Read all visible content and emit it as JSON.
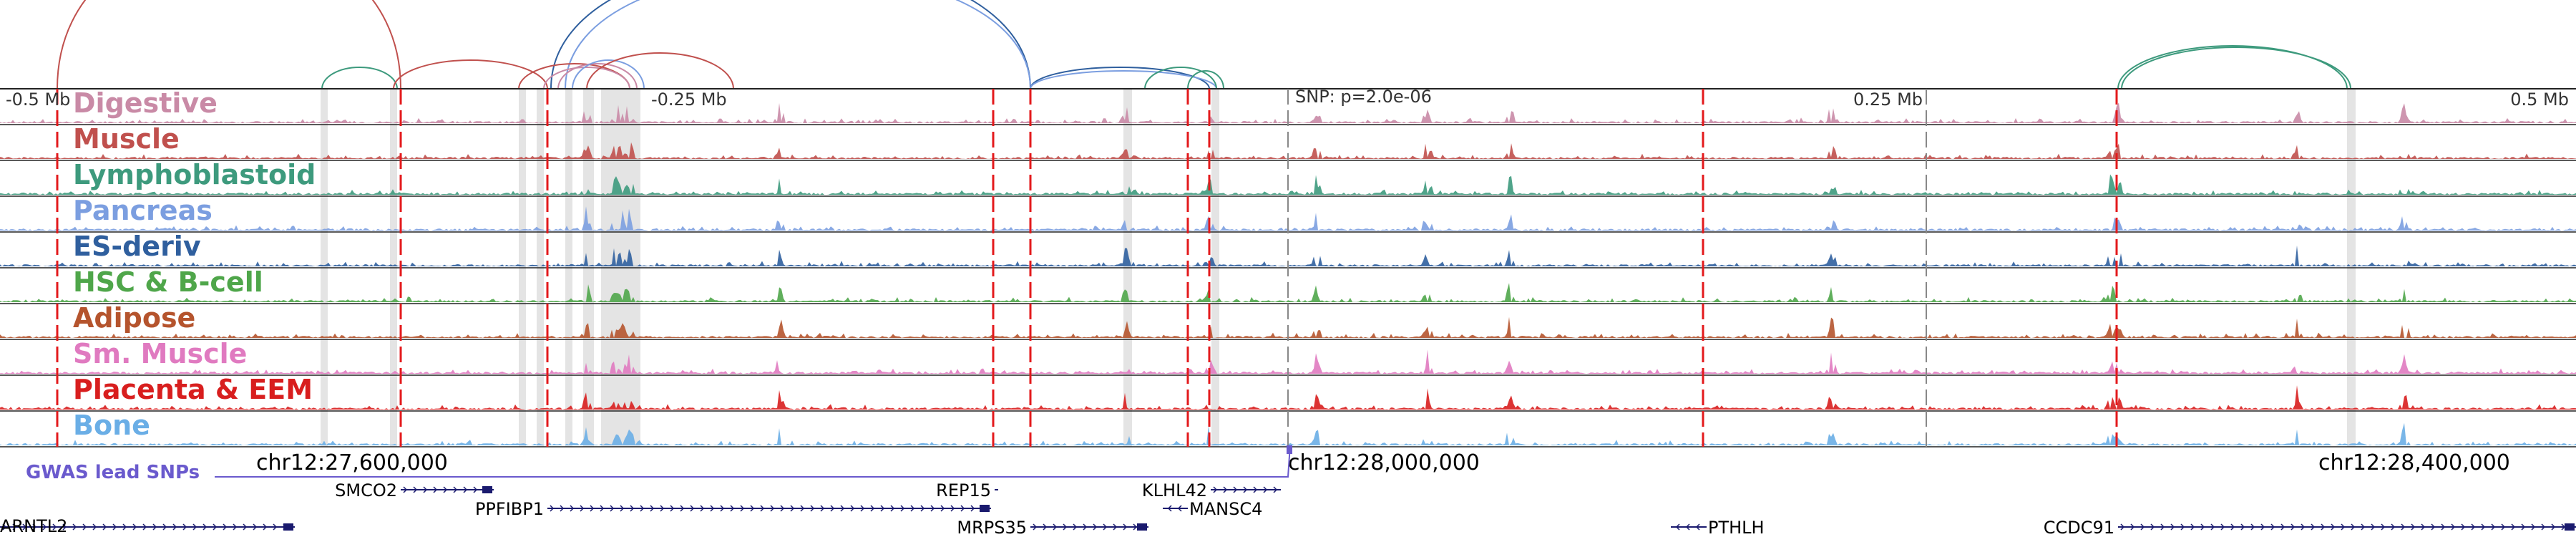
{
  "genome_browser": {
    "offset_labels": [
      "-0.5 Mb",
      "-0.25 Mb",
      "0.25 Mb",
      "0.5 Mb"
    ],
    "snp_label": "SNP: p=2.0e-06",
    "tracks": [
      {
        "label": "Digestive",
        "color": "#c98aa6"
      },
      {
        "label": "Muscle",
        "color": "#c0504d"
      },
      {
        "label": "Lymphoblastoid",
        "color": "#3d9a7d"
      },
      {
        "label": "Pancreas",
        "color": "#7b9ee0"
      },
      {
        "label": "ES-deriv",
        "color": "#2f5f9e"
      },
      {
        "label": "HSC & B-cell",
        "color": "#4fa64a"
      },
      {
        "label": "Adipose",
        "color": "#b5542d"
      },
      {
        "label": "Sm. Muscle",
        "color": "#e07ac0"
      },
      {
        "label": "Placenta & EEM",
        "color": "#d81e1e"
      },
      {
        "label": "Bone",
        "color": "#6aaee6"
      }
    ],
    "coordinates": [
      "chr12:27,600,000",
      "chr12:28,000,000",
      "chr12:28,400,000"
    ],
    "gwas_label": "GWAS lead SNPs",
    "gwas_color": "#6a5acd",
    "arc_colors": [
      "#c0504d",
      "#3d9a7d",
      "#2f5f9e",
      "#7b9ee0",
      "#c98aa6"
    ],
    "highlight_color": "#e31a1c",
    "genes": [
      {
        "name": "ARNTL2"
      },
      {
        "name": "SMCO2"
      },
      {
        "name": "PPFIBP1"
      },
      {
        "name": "REP15"
      },
      {
        "name": "MRPS35"
      },
      {
        "name": "KLHL42"
      },
      {
        "name": "MANSC4"
      },
      {
        "name": "PTHLH"
      },
      {
        "name": "CCDC91"
      }
    ]
  }
}
